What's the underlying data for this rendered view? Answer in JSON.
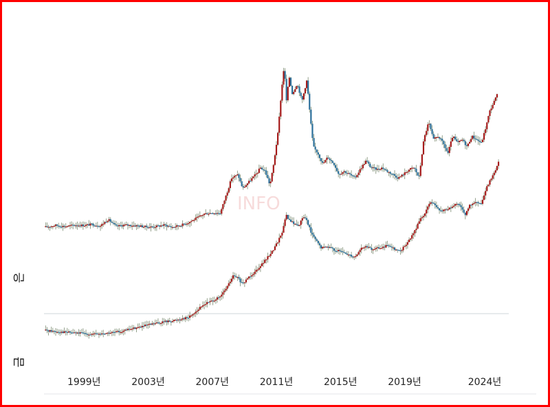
{
  "colors": {
    "border": "#ff0000",
    "up": "#a51a1a",
    "down": "#2b6f9a",
    "wick": "#7a8a70",
    "divider": "#cfd4d8"
  },
  "watermark": "INFO",
  "chart_data": {
    "type": "candlestick-line",
    "x_axis": {
      "range": [
        1996.5,
        2025.5
      ],
      "ticks": [
        {
          "value": 1999,
          "label": "1999년"
        },
        {
          "value": 2003,
          "label": "2003년"
        },
        {
          "value": 2007,
          "label": "2007년"
        },
        {
          "value": 2011,
          "label": "2011년"
        },
        {
          "value": 2015,
          "label": "2015년"
        },
        {
          "value": 2019,
          "label": "2019년"
        },
        {
          "value": 2024,
          "label": "2024년"
        }
      ]
    },
    "y_range": [
      0,
      100
    ],
    "series": [
      {
        "name": "은",
        "points": [
          [
            1996.6,
            41
          ],
          [
            1997.2,
            41.5
          ],
          [
            1997.8,
            41.2
          ],
          [
            1998.5,
            41.6
          ],
          [
            1999.0,
            41.5
          ],
          [
            1999.5,
            41.8
          ],
          [
            2000.0,
            41.3
          ],
          [
            2000.5,
            43.2
          ],
          [
            2001.0,
            41.2
          ],
          [
            2001.5,
            41.6
          ],
          [
            2002.0,
            41.5
          ],
          [
            2002.5,
            41.3
          ],
          [
            2003.0,
            41.0
          ],
          [
            2003.5,
            41.2
          ],
          [
            2004.0,
            41.6
          ],
          [
            2004.5,
            41.0
          ],
          [
            2005.0,
            41.5
          ],
          [
            2005.5,
            42.3
          ],
          [
            2006.0,
            43.5
          ],
          [
            2006.5,
            44.8
          ],
          [
            2007.0,
            45.1
          ],
          [
            2007.5,
            45.0
          ],
          [
            2008.0,
            52.0
          ],
          [
            2008.2,
            55.0
          ],
          [
            2008.6,
            56.0
          ],
          [
            2008.9,
            52.0
          ],
          [
            2009.2,
            53.5
          ],
          [
            2009.5,
            55.0
          ],
          [
            2009.8,
            56.5
          ],
          [
            2010.0,
            58.0
          ],
          [
            2010.3,
            57.0
          ],
          [
            2010.6,
            53.0
          ],
          [
            2010.8,
            58.0
          ],
          [
            2011.1,
            68.0
          ],
          [
            2011.3,
            79.0
          ],
          [
            2011.5,
            88.0
          ],
          [
            2011.6,
            76.0
          ],
          [
            2011.8,
            84.0
          ],
          [
            2012.0,
            79.0
          ],
          [
            2012.3,
            82.0
          ],
          [
            2012.6,
            77.0
          ],
          [
            2012.9,
            83.0
          ],
          [
            2013.1,
            73.0
          ],
          [
            2013.3,
            64.0
          ],
          [
            2013.6,
            62.0
          ],
          [
            2013.9,
            59.0
          ],
          [
            2014.2,
            61.0
          ],
          [
            2014.6,
            59.0
          ],
          [
            2014.9,
            56.0
          ],
          [
            2015.2,
            57.0
          ],
          [
            2015.6,
            56.0
          ],
          [
            2015.9,
            55.0
          ],
          [
            2016.3,
            58.0
          ],
          [
            2016.6,
            60.0
          ],
          [
            2016.9,
            58.0
          ],
          [
            2017.3,
            57.5
          ],
          [
            2017.6,
            58.0
          ],
          [
            2017.9,
            57.0
          ],
          [
            2018.3,
            56.0
          ],
          [
            2018.6,
            55.0
          ],
          [
            2018.9,
            56.0
          ],
          [
            2019.3,
            57.5
          ],
          [
            2019.6,
            58.0
          ],
          [
            2019.9,
            55.0
          ],
          [
            2020.2,
            66.0
          ],
          [
            2020.5,
            71.0
          ],
          [
            2020.8,
            66.0
          ],
          [
            2021.1,
            67.0
          ],
          [
            2021.4,
            65.0
          ],
          [
            2021.7,
            62.0
          ],
          [
            2022.0,
            67.0
          ],
          [
            2022.3,
            65.0
          ],
          [
            2022.6,
            66.0
          ],
          [
            2022.9,
            64.0
          ],
          [
            2023.2,
            67.0
          ],
          [
            2023.5,
            66.0
          ],
          [
            2023.8,
            65.0
          ],
          [
            2024.1,
            70.0
          ],
          [
            2024.3,
            74.0
          ],
          [
            2024.6,
            77.0
          ],
          [
            2024.8,
            79.0
          ]
        ]
      },
      {
        "name": "금",
        "points": [
          [
            1996.6,
            11.5
          ],
          [
            1997.2,
            11.2
          ],
          [
            1997.8,
            11.0
          ],
          [
            1998.5,
            10.8
          ],
          [
            1999.0,
            10.6
          ],
          [
            1999.5,
            10.4
          ],
          [
            2000.0,
            10.5
          ],
          [
            2000.5,
            10.7
          ],
          [
            2001.0,
            11.0
          ],
          [
            2001.5,
            11.4
          ],
          [
            2002.0,
            12.0
          ],
          [
            2002.5,
            12.5
          ],
          [
            2003.0,
            13.0
          ],
          [
            2003.5,
            13.5
          ],
          [
            2004.0,
            14.0
          ],
          [
            2004.5,
            14.2
          ],
          [
            2005.0,
            14.8
          ],
          [
            2005.5,
            15.2
          ],
          [
            2006.0,
            17.0
          ],
          [
            2006.5,
            19.0
          ],
          [
            2007.0,
            20.0
          ],
          [
            2007.5,
            21.0
          ],
          [
            2008.0,
            24.5
          ],
          [
            2008.3,
            27.0
          ],
          [
            2008.6,
            26.5
          ],
          [
            2008.9,
            24.5
          ],
          [
            2009.2,
            26.5
          ],
          [
            2009.6,
            28.0
          ],
          [
            2010.0,
            30.0
          ],
          [
            2010.4,
            32.0
          ],
          [
            2010.8,
            34.5
          ],
          [
            2011.1,
            37.0
          ],
          [
            2011.4,
            40.0
          ],
          [
            2011.6,
            44.5
          ],
          [
            2011.8,
            43.0
          ],
          [
            2012.1,
            42.0
          ],
          [
            2012.4,
            41.5
          ],
          [
            2012.7,
            44.0
          ],
          [
            2012.9,
            43.0
          ],
          [
            2013.2,
            39.0
          ],
          [
            2013.5,
            37.0
          ],
          [
            2013.8,
            35.0
          ],
          [
            2014.2,
            35.5
          ],
          [
            2014.6,
            34.5
          ],
          [
            2015.0,
            34.0
          ],
          [
            2015.3,
            33.5
          ],
          [
            2015.6,
            33.0
          ],
          [
            2015.9,
            32.5
          ],
          [
            2016.3,
            35.0
          ],
          [
            2016.7,
            35.5
          ],
          [
            2016.9,
            34.5
          ],
          [
            2017.3,
            35.0
          ],
          [
            2017.7,
            35.2
          ],
          [
            2018.0,
            36.0
          ],
          [
            2018.3,
            35.0
          ],
          [
            2018.7,
            34.0
          ],
          [
            2019.0,
            35.5
          ],
          [
            2019.4,
            38.0
          ],
          [
            2019.7,
            40.5
          ],
          [
            2020.0,
            43.5
          ],
          [
            2020.3,
            45.0
          ],
          [
            2020.6,
            48.5
          ],
          [
            2020.9,
            47.0
          ],
          [
            2021.2,
            45.5
          ],
          [
            2021.6,
            46.0
          ],
          [
            2021.9,
            46.5
          ],
          [
            2022.2,
            47.5
          ],
          [
            2022.5,
            47.0
          ],
          [
            2022.8,
            44.5
          ],
          [
            2023.1,
            47.5
          ],
          [
            2023.5,
            48.0
          ],
          [
            2023.8,
            47.5
          ],
          [
            2024.1,
            52.0
          ],
          [
            2024.4,
            55.0
          ],
          [
            2024.7,
            57.5
          ],
          [
            2024.9,
            60.0
          ]
        ]
      }
    ]
  }
}
